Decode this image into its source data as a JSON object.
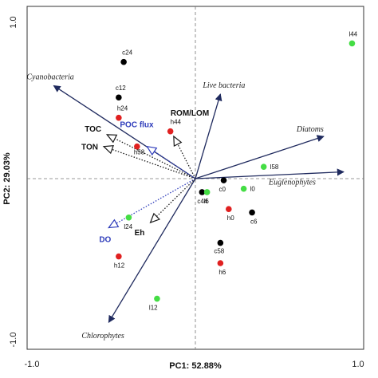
{
  "chart_data": {
    "type": "scatter",
    "title": "",
    "xlabel": "PC1: 52.88%",
    "ylabel": "PC2: 29.03%",
    "xlim": [
      -1.0,
      1.0
    ],
    "ylim": [
      -1.0,
      1.0
    ],
    "x_ticks": [
      "-1.0",
      "1.0"
    ],
    "y_ticks": [
      "1.0",
      "-1.0"
    ],
    "grid": false,
    "reference_lines": "dashed lines at x=0 and y=0",
    "colors": {
      "c": "#000000",
      "h": "#e02020",
      "l": "#44dd44",
      "arrow_solid": "#1f2a5e",
      "arrow_dotted": "#1a1a1a",
      "arrow_blue": "#2f3dbb"
    },
    "points": [
      {
        "label": "c24",
        "group": "c",
        "x": -0.43,
        "y": 0.69
      },
      {
        "label": "c12",
        "group": "c",
        "x": -0.46,
        "y": 0.48
      },
      {
        "label": "h24",
        "group": "h",
        "x": -0.46,
        "y": 0.36
      },
      {
        "label": "h44",
        "group": "h",
        "x": -0.15,
        "y": 0.28
      },
      {
        "label": "h58",
        "group": "h",
        "x": -0.35,
        "y": 0.19
      },
      {
        "label": "l44",
        "group": "l",
        "x": 0.94,
        "y": 0.8
      },
      {
        "label": "l58",
        "group": "l",
        "x": 0.41,
        "y": 0.07
      },
      {
        "label": "c0",
        "group": "c",
        "x": 0.17,
        "y": -0.01
      },
      {
        "label": "l0",
        "group": "l",
        "x": 0.29,
        "y": -0.06
      },
      {
        "label": "c44",
        "group": "c",
        "x": 0.04,
        "y": -0.08
      },
      {
        "label": "l6",
        "group": "l",
        "x": 0.07,
        "y": -0.08
      },
      {
        "label": "h0",
        "group": "h",
        "x": 0.2,
        "y": -0.18
      },
      {
        "label": "c6",
        "group": "c",
        "x": 0.34,
        "y": -0.2
      },
      {
        "label": "l24",
        "group": "l",
        "x": -0.4,
        "y": -0.23
      },
      {
        "label": "c58",
        "group": "c",
        "x": 0.15,
        "y": -0.38
      },
      {
        "label": "h6",
        "group": "h",
        "x": 0.15,
        "y": -0.5
      },
      {
        "label": "h12",
        "group": "h",
        "x": -0.46,
        "y": -0.46
      },
      {
        "label": "l12",
        "group": "l",
        "x": -0.23,
        "y": -0.71
      }
    ],
    "vectors": [
      {
        "label": "Cyanobacteria",
        "style": "solid",
        "x": -0.85,
        "y": 0.55
      },
      {
        "label": "Live bacteria",
        "style": "solid",
        "x": 0.15,
        "y": 0.5
      },
      {
        "label": "Diatoms",
        "style": "solid",
        "x": 0.77,
        "y": 0.25
      },
      {
        "label": "Euglenophytes",
        "style": "solid",
        "x": 0.89,
        "y": 0.04
      },
      {
        "label": "Chlorophytes",
        "style": "solid",
        "x": -0.52,
        "y": -0.85
      },
      {
        "label": "ROM/LOM",
        "style": "dotted",
        "x": -0.13,
        "y": 0.25
      },
      {
        "label": "TOC",
        "style": "dotted",
        "x": -0.53,
        "y": 0.26
      },
      {
        "label": "TON",
        "style": "dotted",
        "x": -0.55,
        "y": 0.19
      },
      {
        "label": "POC flux",
        "style": "dotted-blue",
        "x": -0.29,
        "y": 0.19
      },
      {
        "label": "DO",
        "style": "dotted-blue",
        "x": -0.52,
        "y": -0.29
      },
      {
        "label": "Eh",
        "style": "dotted",
        "x": -0.27,
        "y": -0.26
      }
    ]
  }
}
